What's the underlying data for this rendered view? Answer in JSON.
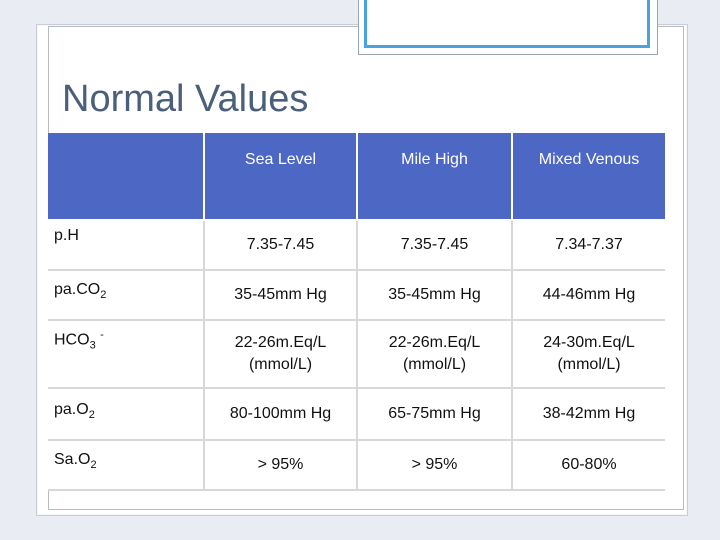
{
  "slide": {
    "title": "Normal Values"
  },
  "table": {
    "headers": [
      "",
      "Sea Level",
      "Mile High",
      "Mixed Venous"
    ],
    "rows": [
      {
        "label_main": "p.H",
        "label_sub": "",
        "label_sup": "",
        "values": [
          "7.35-7.45",
          "7.35-7.45",
          "7.34-7.37"
        ]
      },
      {
        "label_main": "pa.CO",
        "label_sub": "2",
        "label_sup": "",
        "values": [
          "35-45mm Hg",
          "35-45mm Hg",
          "44-46mm Hg"
        ]
      },
      {
        "label_main": "HCO",
        "label_sub": "3",
        "label_sup": "-",
        "values": [
          "22-26m.Eq/L (mmol/L)",
          "22-26m.Eq/L (mmol/L)",
          "24-30m.Eq/L (mmol/L)"
        ]
      },
      {
        "label_main": "pa.O",
        "label_sub": "2",
        "label_sup": "",
        "values": [
          "80-100mm Hg",
          "65-75mm Hg",
          "38-42mm Hg"
        ]
      },
      {
        "label_main": "Sa.O",
        "label_sub": "2",
        "label_sup": "",
        "values": [
          "> 95%",
          "> 95%",
          "60-80%"
        ]
      }
    ]
  }
}
